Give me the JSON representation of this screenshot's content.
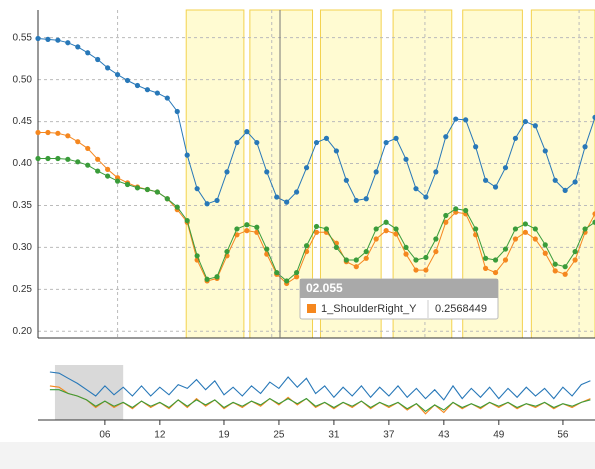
{
  "chart_data": [
    {
      "type": "line",
      "markers": true,
      "x": [
        0,
        1,
        2,
        3,
        4,
        5,
        6,
        7,
        8,
        9,
        10,
        11,
        12,
        13,
        14,
        15,
        16,
        17,
        18,
        19,
        20,
        21,
        22,
        23,
        24,
        25,
        26,
        27,
        28,
        29,
        30,
        31,
        32,
        33,
        34,
        35,
        36,
        37,
        38,
        39,
        40,
        41,
        42,
        43,
        44,
        45,
        46,
        47,
        48,
        49,
        50,
        51,
        52,
        53,
        54,
        55,
        56
      ],
      "xlim": [
        0,
        56
      ],
      "xticks": [
        8,
        23.5,
        38.9,
        54.4
      ],
      "ylim": [
        0.192,
        0.583
      ],
      "yticks": [
        {
          "value": 0.2,
          "label": "0.20"
        },
        0.25,
        {
          "value": 0.3,
          "label": "0.30"
        },
        0.35,
        {
          "value": 0.4,
          "label": "0.40"
        },
        0.45,
        {
          "value": 0.5,
          "label": "0.50"
        },
        0.55
      ],
      "grid": true,
      "regions": [
        [
          14.9,
          20.7
        ],
        [
          21.3,
          27.6
        ],
        [
          28.4,
          34.5
        ],
        [
          35.7,
          41.6
        ],
        [
          42.7,
          48.7
        ],
        [
          49.6,
          56
        ]
      ],
      "region_color": "#fffbd2",
      "region_edge": "#f3d24e",
      "series": [
        {
          "color": "#2878b8",
          "values": [
            0.549,
            0.548,
            0.547,
            0.544,
            0.539,
            0.532,
            0.524,
            0.514,
            0.506,
            0.499,
            0.493,
            0.488,
            0.484,
            0.478,
            0.462,
            0.41,
            0.37,
            0.352,
            0.356,
            0.39,
            0.425,
            0.438,
            0.425,
            0.39,
            0.36,
            0.354,
            0.366,
            0.395,
            0.425,
            0.43,
            0.415,
            0.38,
            0.356,
            0.358,
            0.39,
            0.425,
            0.43,
            0.405,
            0.37,
            0.36,
            0.39,
            0.432,
            0.453,
            0.452,
            0.42,
            0.38,
            0.372,
            0.395,
            0.43,
            0.45,
            0.445,
            0.415,
            0.38,
            0.368,
            0.378,
            0.42,
            0.455
          ]
        },
        {
          "name": "1_ShoulderRight_Y",
          "color": "#f5871f",
          "values": [
            0.437,
            0.437,
            0.436,
            0.433,
            0.426,
            0.418,
            0.405,
            0.393,
            0.383,
            0.377,
            0.372,
            0.369,
            0.366,
            0.358,
            0.345,
            0.33,
            0.285,
            0.26,
            0.263,
            0.29,
            0.315,
            0.32,
            0.318,
            0.292,
            0.268,
            0.257,
            0.265,
            0.295,
            0.318,
            0.318,
            0.305,
            0.283,
            0.277,
            0.287,
            0.31,
            0.32,
            0.316,
            0.292,
            0.273,
            0.273,
            0.295,
            0.33,
            0.342,
            0.34,
            0.315,
            0.275,
            0.27,
            0.285,
            0.31,
            0.318,
            0.31,
            0.293,
            0.272,
            0.268,
            0.285,
            0.318,
            0.34
          ]
        },
        {
          "color": "#3a9c3a",
          "values": [
            0.406,
            0.406,
            0.406,
            0.405,
            0.402,
            0.398,
            0.391,
            0.385,
            0.379,
            0.375,
            0.371,
            0.369,
            0.366,
            0.358,
            0.348,
            0.332,
            0.29,
            0.262,
            0.265,
            0.295,
            0.322,
            0.327,
            0.324,
            0.298,
            0.27,
            0.26,
            0.27,
            0.302,
            0.325,
            0.322,
            0.3,
            0.285,
            0.285,
            0.295,
            0.322,
            0.33,
            0.322,
            0.3,
            0.285,
            0.288,
            0.31,
            0.338,
            0.346,
            0.344,
            0.322,
            0.287,
            0.285,
            0.298,
            0.322,
            0.328,
            0.322,
            0.303,
            0.28,
            0.277,
            0.295,
            0.322,
            0.33
          ]
        }
      ],
      "tooltip": {
        "title": "02.055",
        "series": "1_ShoulderRight_Y",
        "value": "0.2568449"
      }
    },
    {
      "type": "line",
      "markers": false,
      "x": [
        0,
        1,
        2,
        3,
        4,
        5,
        6,
        7,
        8,
        9,
        10,
        11,
        12,
        13,
        14,
        15,
        16,
        17,
        18,
        19,
        20,
        21,
        22,
        23,
        24,
        25,
        26,
        27,
        28,
        29,
        30,
        31,
        32,
        33,
        34,
        35,
        36,
        37,
        38,
        39,
        40,
        41,
        42,
        43,
        44,
        45,
        46,
        47,
        48,
        49,
        50,
        51,
        52,
        53,
        54,
        55,
        56,
        57,
        58,
        59
      ],
      "xlim": [
        -1.3,
        59.5
      ],
      "ylim": [
        0.171,
        0.605
      ],
      "xticks": [
        {
          "value": 6,
          "label": "06"
        },
        12,
        19,
        25,
        31,
        37,
        43,
        49,
        56
      ],
      "brush": [
        0.55,
        8.0
      ],
      "brush_color": "#d9d9d9",
      "series": [
        {
          "color": "#2878b8",
          "values": [
            0.55,
            0.54,
            0.5,
            0.46,
            0.41,
            0.36,
            0.44,
            0.37,
            0.43,
            0.36,
            0.44,
            0.36,
            0.43,
            0.37,
            0.45,
            0.42,
            0.49,
            0.41,
            0.48,
            0.37,
            0.43,
            0.36,
            0.44,
            0.38,
            0.47,
            0.42,
            0.51,
            0.43,
            0.5,
            0.38,
            0.44,
            0.35,
            0.43,
            0.36,
            0.44,
            0.35,
            0.43,
            0.36,
            0.44,
            0.35,
            0.42,
            0.34,
            0.41,
            0.33,
            0.44,
            0.34,
            0.42,
            0.35,
            0.43,
            0.34,
            0.42,
            0.35,
            0.43,
            0.36,
            0.42,
            0.34,
            0.43,
            0.36,
            0.45,
            0.48
          ]
        },
        {
          "name": "1_ShoulderRight_Y",
          "color": "#f5871f",
          "values": [
            0.44,
            0.43,
            0.38,
            0.36,
            0.33,
            0.27,
            0.32,
            0.27,
            0.31,
            0.26,
            0.32,
            0.27,
            0.31,
            0.26,
            0.33,
            0.27,
            0.34,
            0.28,
            0.33,
            0.26,
            0.31,
            0.27,
            0.32,
            0.28,
            0.34,
            0.29,
            0.35,
            0.29,
            0.34,
            0.27,
            0.31,
            0.26,
            0.31,
            0.27,
            0.32,
            0.26,
            0.31,
            0.27,
            0.31,
            0.25,
            0.3,
            0.22,
            0.29,
            0.23,
            0.31,
            0.26,
            0.3,
            0.26,
            0.31,
            0.27,
            0.31,
            0.26,
            0.3,
            0.27,
            0.31,
            0.26,
            0.3,
            0.27,
            0.31,
            0.34
          ]
        },
        {
          "color": "#3a9c3a",
          "values": [
            0.41,
            0.41,
            0.38,
            0.36,
            0.33,
            0.28,
            0.32,
            0.28,
            0.31,
            0.27,
            0.32,
            0.28,
            0.31,
            0.27,
            0.33,
            0.28,
            0.33,
            0.29,
            0.33,
            0.27,
            0.31,
            0.28,
            0.32,
            0.29,
            0.34,
            0.3,
            0.34,
            0.3,
            0.34,
            0.28,
            0.31,
            0.27,
            0.31,
            0.28,
            0.32,
            0.27,
            0.31,
            0.28,
            0.31,
            0.26,
            0.3,
            0.24,
            0.29,
            0.25,
            0.31,
            0.27,
            0.3,
            0.27,
            0.31,
            0.28,
            0.31,
            0.27,
            0.3,
            0.28,
            0.31,
            0.27,
            0.3,
            0.28,
            0.31,
            0.33
          ]
        }
      ]
    }
  ]
}
